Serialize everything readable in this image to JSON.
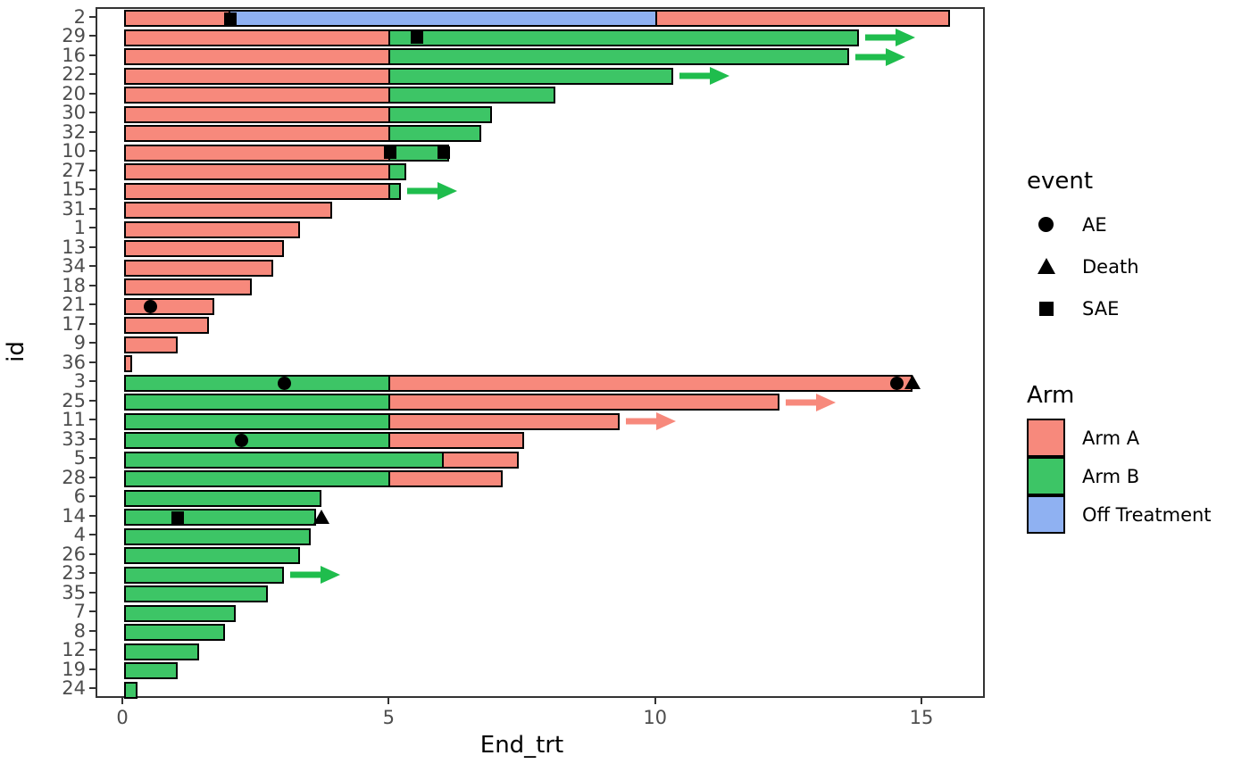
{
  "chart_data": {
    "type": "bar",
    "subtype": "swimmer-plot",
    "orientation": "horizontal",
    "xlabel": "End_trt",
    "ylabel": "id",
    "xlim": [
      0,
      16.2
    ],
    "x_ticks": [
      "0",
      "5",
      "10",
      "15"
    ],
    "x_tick_values": [
      0,
      5,
      10,
      15
    ],
    "grid": false,
    "colors": {
      "Arm A": "#F7897C",
      "Arm B": "#3DC566",
      "Off Treatment": "#8FB1F2",
      "arrow_Arm A": "#F7897C",
      "arrow_Arm B": "#1FBD4D",
      "marker": "#000000"
    },
    "rows": [
      {
        "id": "2",
        "segments": [
          {
            "arm": "Arm A",
            "start": 0,
            "end": 2
          },
          {
            "arm": "Off Treatment",
            "start": 2,
            "end": 10
          },
          {
            "arm": "Arm A",
            "start": 10,
            "end": 15.5
          }
        ],
        "events": [
          {
            "type": "SAE",
            "x": 2
          }
        ],
        "arrow": null
      },
      {
        "id": "29",
        "segments": [
          {
            "arm": "Arm A",
            "start": 0,
            "end": 5
          },
          {
            "arm": "Arm B",
            "start": 5,
            "end": 13.8
          }
        ],
        "events": [
          {
            "type": "SAE",
            "x": 5.5
          }
        ],
        "arrow": "Arm B"
      },
      {
        "id": "16",
        "segments": [
          {
            "arm": "Arm A",
            "start": 0,
            "end": 5
          },
          {
            "arm": "Arm B",
            "start": 5,
            "end": 13.6
          }
        ],
        "events": [],
        "arrow": "Arm B"
      },
      {
        "id": "22",
        "segments": [
          {
            "arm": "Arm A",
            "start": 0,
            "end": 5
          },
          {
            "arm": "Arm B",
            "start": 5,
            "end": 10.3
          }
        ],
        "events": [],
        "arrow": "Arm B"
      },
      {
        "id": "20",
        "segments": [
          {
            "arm": "Arm A",
            "start": 0,
            "end": 5
          },
          {
            "arm": "Arm B",
            "start": 5,
            "end": 8.1
          }
        ],
        "events": [],
        "arrow": null
      },
      {
        "id": "30",
        "segments": [
          {
            "arm": "Arm A",
            "start": 0,
            "end": 5
          },
          {
            "arm": "Arm B",
            "start": 5,
            "end": 6.9
          }
        ],
        "events": [],
        "arrow": null
      },
      {
        "id": "32",
        "segments": [
          {
            "arm": "Arm A",
            "start": 0,
            "end": 5
          },
          {
            "arm": "Arm B",
            "start": 5,
            "end": 6.7
          }
        ],
        "events": [],
        "arrow": null
      },
      {
        "id": "10",
        "segments": [
          {
            "arm": "Arm A",
            "start": 0,
            "end": 5
          },
          {
            "arm": "Arm B",
            "start": 5,
            "end": 6.1
          }
        ],
        "events": [
          {
            "type": "SAE",
            "x": 5
          },
          {
            "type": "SAE",
            "x": 6
          }
        ],
        "arrow": null
      },
      {
        "id": "27",
        "segments": [
          {
            "arm": "Arm A",
            "start": 0,
            "end": 5
          },
          {
            "arm": "Arm B",
            "start": 5,
            "end": 5.3
          }
        ],
        "events": [],
        "arrow": null
      },
      {
        "id": "15",
        "segments": [
          {
            "arm": "Arm A",
            "start": 0,
            "end": 5
          },
          {
            "arm": "Arm B",
            "start": 5,
            "end": 5.2
          }
        ],
        "events": [],
        "arrow": "Arm B"
      },
      {
        "id": "31",
        "segments": [
          {
            "arm": "Arm A",
            "start": 0,
            "end": 3.9
          }
        ],
        "events": [],
        "arrow": null
      },
      {
        "id": "1",
        "segments": [
          {
            "arm": "Arm A",
            "start": 0,
            "end": 3.3
          }
        ],
        "events": [],
        "arrow": null
      },
      {
        "id": "13",
        "segments": [
          {
            "arm": "Arm A",
            "start": 0,
            "end": 3.0
          }
        ],
        "events": [],
        "arrow": null
      },
      {
        "id": "34",
        "segments": [
          {
            "arm": "Arm A",
            "start": 0,
            "end": 2.8
          }
        ],
        "events": [],
        "arrow": null
      },
      {
        "id": "18",
        "segments": [
          {
            "arm": "Arm A",
            "start": 0,
            "end": 2.4
          }
        ],
        "events": [],
        "arrow": null
      },
      {
        "id": "21",
        "segments": [
          {
            "arm": "Arm A",
            "start": 0,
            "end": 1.7
          }
        ],
        "events": [
          {
            "type": "AE",
            "x": 0.5
          }
        ],
        "arrow": null
      },
      {
        "id": "17",
        "segments": [
          {
            "arm": "Arm A",
            "start": 0,
            "end": 1.6
          }
        ],
        "events": [],
        "arrow": null
      },
      {
        "id": "9",
        "segments": [
          {
            "arm": "Arm A",
            "start": 0,
            "end": 1.0
          }
        ],
        "events": [],
        "arrow": null
      },
      {
        "id": "36",
        "segments": [
          {
            "arm": "Arm A",
            "start": 0,
            "end": 0.15
          }
        ],
        "events": [],
        "arrow": null
      },
      {
        "id": "3",
        "segments": [
          {
            "arm": "Arm B",
            "start": 0,
            "end": 5
          },
          {
            "arm": "Arm A",
            "start": 5,
            "end": 14.8
          }
        ],
        "events": [
          {
            "type": "AE",
            "x": 3
          },
          {
            "type": "AE",
            "x": 14.5
          },
          {
            "type": "Death",
            "x": 14.8
          }
        ],
        "arrow": null
      },
      {
        "id": "25",
        "segments": [
          {
            "arm": "Arm B",
            "start": 0,
            "end": 5
          },
          {
            "arm": "Arm A",
            "start": 5,
            "end": 12.3
          }
        ],
        "events": [],
        "arrow": "Arm A"
      },
      {
        "id": "11",
        "segments": [
          {
            "arm": "Arm B",
            "start": 0,
            "end": 5
          },
          {
            "arm": "Arm A",
            "start": 5,
            "end": 9.3
          }
        ],
        "events": [],
        "arrow": "Arm A"
      },
      {
        "id": "33",
        "segments": [
          {
            "arm": "Arm B",
            "start": 0,
            "end": 5
          },
          {
            "arm": "Arm A",
            "start": 5,
            "end": 7.5
          }
        ],
        "events": [
          {
            "type": "AE",
            "x": 2.2
          }
        ],
        "arrow": null
      },
      {
        "id": "5",
        "segments": [
          {
            "arm": "Arm B",
            "start": 0,
            "end": 6
          },
          {
            "arm": "Arm A",
            "start": 6,
            "end": 7.4
          }
        ],
        "events": [],
        "arrow": null
      },
      {
        "id": "28",
        "segments": [
          {
            "arm": "Arm B",
            "start": 0,
            "end": 5
          },
          {
            "arm": "Arm A",
            "start": 5,
            "end": 7.1
          }
        ],
        "events": [],
        "arrow": null
      },
      {
        "id": "6",
        "segments": [
          {
            "arm": "Arm B",
            "start": 0,
            "end": 3.7
          }
        ],
        "events": [],
        "arrow": null
      },
      {
        "id": "14",
        "segments": [
          {
            "arm": "Arm B",
            "start": 0,
            "end": 3.6
          }
        ],
        "events": [
          {
            "type": "SAE",
            "x": 1
          },
          {
            "type": "Death",
            "x": 3.7
          }
        ],
        "arrow": null
      },
      {
        "id": "4",
        "segments": [
          {
            "arm": "Arm B",
            "start": 0,
            "end": 3.5
          }
        ],
        "events": [],
        "arrow": null
      },
      {
        "id": "26",
        "segments": [
          {
            "arm": "Arm B",
            "start": 0,
            "end": 3.3
          }
        ],
        "events": [],
        "arrow": null
      },
      {
        "id": "23",
        "segments": [
          {
            "arm": "Arm B",
            "start": 0,
            "end": 3.0
          }
        ],
        "events": [],
        "arrow": "Arm B"
      },
      {
        "id": "35",
        "segments": [
          {
            "arm": "Arm B",
            "start": 0,
            "end": 2.7
          }
        ],
        "events": [],
        "arrow": null
      },
      {
        "id": "7",
        "segments": [
          {
            "arm": "Arm B",
            "start": 0,
            "end": 2.1
          }
        ],
        "events": [],
        "arrow": null
      },
      {
        "id": "8",
        "segments": [
          {
            "arm": "Arm B",
            "start": 0,
            "end": 1.9
          }
        ],
        "events": [],
        "arrow": null
      },
      {
        "id": "12",
        "segments": [
          {
            "arm": "Arm B",
            "start": 0,
            "end": 1.4
          }
        ],
        "events": [],
        "arrow": null
      },
      {
        "id": "19",
        "segments": [
          {
            "arm": "Arm B",
            "start": 0,
            "end": 1.0
          }
        ],
        "events": [],
        "arrow": null
      },
      {
        "id": "24",
        "segments": [
          {
            "arm": "Arm B",
            "start": 0,
            "end": 0.25
          }
        ],
        "events": [],
        "arrow": null
      }
    ],
    "legend_event": {
      "title": "event",
      "items": [
        {
          "label": "AE",
          "marker": "circle"
        },
        {
          "label": "Death",
          "marker": "triangle"
        },
        {
          "label": "SAE",
          "marker": "square"
        }
      ]
    },
    "legend_arm": {
      "title": "Arm",
      "items": [
        {
          "label": "Arm A",
          "color": "#F7897C"
        },
        {
          "label": "Arm B",
          "color": "#3DC566"
        },
        {
          "label": "Off Treatment",
          "color": "#8FB1F2"
        }
      ]
    }
  }
}
